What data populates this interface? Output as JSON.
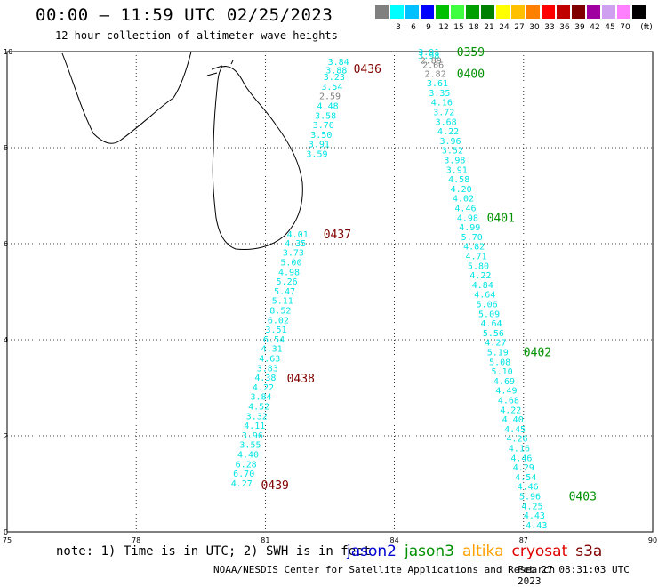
{
  "header": {
    "title": "00:00 – 11:59 UTC 02/25/2023",
    "subtitle": "12 hour collection of altimeter wave heights"
  },
  "colorbar": {
    "unit": "(ft)",
    "bins": [
      {
        "label": "",
        "color": "#808080"
      },
      {
        "label": "3",
        "color": "#00ffff"
      },
      {
        "label": "6",
        "color": "#00c0ff"
      },
      {
        "label": "9",
        "color": "#0000ff"
      },
      {
        "label": "12",
        "color": "#00c000"
      },
      {
        "label": "15",
        "color": "#40ff40"
      },
      {
        "label": "18",
        "color": "#00a000"
      },
      {
        "label": "21",
        "color": "#008000"
      },
      {
        "label": "24",
        "color": "#ffff00"
      },
      {
        "label": "27",
        "color": "#ffc000"
      },
      {
        "label": "30",
        "color": "#ff8000"
      },
      {
        "label": "33",
        "color": "#ff0000"
      },
      {
        "label": "36",
        "color": "#c00000"
      },
      {
        "label": "39",
        "color": "#800000"
      },
      {
        "label": "42",
        "color": "#a000a0"
      },
      {
        "label": "45",
        "color": "#d0a0f0"
      },
      {
        "label": "70",
        "color": "#ff80ff"
      },
      {
        "label": "",
        "color": "#000000"
      }
    ]
  },
  "map": {
    "lon_range": [
      75,
      90
    ],
    "lat_range": [
      0,
      10
    ],
    "lon_ticks": [
      "75",
      "78",
      "81",
      "84",
      "87",
      "90"
    ],
    "lat_ticks": [
      "0",
      "2",
      "4",
      "6",
      "8",
      "10"
    ],
    "track_west": {
      "color": "#00e5e5",
      "points": [
        {
          "lon": 82.7,
          "lat": 9.8,
          "v": "3.84",
          "c": "#00e5e5"
        },
        {
          "lon": 82.65,
          "lat": 9.62,
          "v": "3.88",
          "c": "#00e5e5"
        },
        {
          "lon": 82.6,
          "lat": 9.48,
          "v": "3.23",
          "c": "#00e5e5"
        },
        {
          "lon": 82.55,
          "lat": 9.28,
          "v": "3.54",
          "c": "#00e5e5"
        },
        {
          "lon": 82.5,
          "lat": 9.08,
          "v": "2.59",
          "c": "#808080"
        },
        {
          "lon": 82.45,
          "lat": 8.88,
          "v": "4.48",
          "c": "#00e5e5"
        },
        {
          "lon": 82.4,
          "lat": 8.68,
          "v": "3.58",
          "c": "#00e5e5"
        },
        {
          "lon": 82.35,
          "lat": 8.48,
          "v": "3.70",
          "c": "#00e5e5"
        },
        {
          "lon": 82.3,
          "lat": 8.28,
          "v": "3.50",
          "c": "#00e5e5"
        },
        {
          "lon": 82.25,
          "lat": 8.08,
          "v": "3.91",
          "c": "#00e5e5"
        },
        {
          "lon": 82.2,
          "lat": 7.88,
          "v": "3.59",
          "c": "#00e5e5"
        },
        {
          "lon": 81.75,
          "lat": 6.2,
          "v": "4.01",
          "c": "#00e5e5"
        },
        {
          "lon": 81.7,
          "lat": 6.02,
          "v": "4.35",
          "c": "#00e5e5"
        },
        {
          "lon": 81.65,
          "lat": 5.82,
          "v": "3.73",
          "c": "#00e5e5"
        },
        {
          "lon": 81.6,
          "lat": 5.62,
          "v": "5.00",
          "c": "#00e5e5"
        },
        {
          "lon": 81.55,
          "lat": 5.42,
          "v": "4.98",
          "c": "#00e5e5"
        },
        {
          "lon": 81.5,
          "lat": 5.22,
          "v": "5.26",
          "c": "#00e5e5"
        },
        {
          "lon": 81.45,
          "lat": 5.02,
          "v": "5.47",
          "c": "#00e5e5"
        },
        {
          "lon": 81.4,
          "lat": 4.82,
          "v": "5.11",
          "c": "#00e5e5"
        },
        {
          "lon": 81.35,
          "lat": 4.62,
          "v": "8.52",
          "c": "#00e5e5"
        },
        {
          "lon": 81.3,
          "lat": 4.42,
          "v": "6.02",
          "c": "#00e5e5"
        },
        {
          "lon": 81.25,
          "lat": 4.22,
          "v": "3.51",
          "c": "#00e5e5"
        },
        {
          "lon": 81.2,
          "lat": 4.02,
          "v": "6.54",
          "c": "#00e5e5"
        },
        {
          "lon": 81.15,
          "lat": 3.82,
          "v": "4.31",
          "c": "#00e5e5"
        },
        {
          "lon": 81.1,
          "lat": 3.62,
          "v": "4.63",
          "c": "#00e5e5"
        },
        {
          "lon": 81.05,
          "lat": 3.42,
          "v": "3.83",
          "c": "#00e5e5"
        },
        {
          "lon": 81.0,
          "lat": 3.22,
          "v": "4.38",
          "c": "#00e5e5"
        },
        {
          "lon": 80.95,
          "lat": 3.02,
          "v": "4.22",
          "c": "#00e5e5"
        },
        {
          "lon": 80.9,
          "lat": 2.82,
          "v": "3.84",
          "c": "#00e5e5"
        },
        {
          "lon": 80.85,
          "lat": 2.62,
          "v": "4.52",
          "c": "#00e5e5"
        },
        {
          "lon": 80.8,
          "lat": 2.42,
          "v": "3.32",
          "c": "#00e5e5"
        },
        {
          "lon": 80.75,
          "lat": 2.22,
          "v": "4.11",
          "c": "#00e5e5"
        },
        {
          "lon": 80.7,
          "lat": 2.02,
          "v": "3.96",
          "c": "#00e5e5"
        },
        {
          "lon": 80.65,
          "lat": 1.82,
          "v": "3.55",
          "c": "#00e5e5"
        },
        {
          "lon": 80.6,
          "lat": 1.62,
          "v": "4.40",
          "c": "#00e5e5"
        },
        {
          "lon": 80.55,
          "lat": 1.42,
          "v": "6.28",
          "c": "#00e5e5"
        },
        {
          "lon": 80.5,
          "lat": 1.22,
          "v": "6.70",
          "c": "#00e5e5"
        },
        {
          "lon": 80.45,
          "lat": 1.02,
          "v": "4.27",
          "c": "#00e5e5"
        }
      ],
      "time_labels": [
        {
          "lon": 83.05,
          "lat": 9.65,
          "t": "0436"
        },
        {
          "lon": 82.35,
          "lat": 6.2,
          "t": "0437"
        },
        {
          "lon": 81.5,
          "lat": 3.2,
          "t": "0438"
        },
        {
          "lon": 80.9,
          "lat": 0.98,
          "t": "0439"
        }
      ]
    },
    "track_east": {
      "color": "#00e5e5",
      "points": [
        {
          "lon": 84.8,
          "lat": 10.0,
          "v": "3.91",
          "c": "#00e5e5"
        },
        {
          "lon": 84.8,
          "lat": 9.93,
          "v": "3.98",
          "c": "#00e5e5"
        },
        {
          "lon": 84.85,
          "lat": 9.82,
          "v": "2.89",
          "c": "#808080"
        },
        {
          "lon": 84.9,
          "lat": 9.73,
          "v": "2.66",
          "c": "#808080"
        },
        {
          "lon": 84.95,
          "lat": 9.55,
          "v": "2.82",
          "c": "#808080"
        },
        {
          "lon": 85.0,
          "lat": 9.35,
          "v": "3.61",
          "c": "#00e5e5"
        },
        {
          "lon": 85.05,
          "lat": 9.15,
          "v": "3.35",
          "c": "#00e5e5"
        },
        {
          "lon": 85.1,
          "lat": 8.95,
          "v": "4.16",
          "c": "#00e5e5"
        },
        {
          "lon": 85.15,
          "lat": 8.75,
          "v": "3.72",
          "c": "#00e5e5"
        },
        {
          "lon": 85.2,
          "lat": 8.55,
          "v": "3.68",
          "c": "#00e5e5"
        },
        {
          "lon": 85.25,
          "lat": 8.35,
          "v": "4.22",
          "c": "#00e5e5"
        },
        {
          "lon": 85.3,
          "lat": 8.15,
          "v": "3.96",
          "c": "#00e5e5"
        },
        {
          "lon": 85.35,
          "lat": 7.95,
          "v": "3.52",
          "c": "#00e5e5"
        },
        {
          "lon": 85.4,
          "lat": 7.75,
          "v": "3.98",
          "c": "#00e5e5"
        },
        {
          "lon": 85.45,
          "lat": 7.55,
          "v": "3.91",
          "c": "#00e5e5"
        },
        {
          "lon": 85.5,
          "lat": 7.35,
          "v": "4.58",
          "c": "#00e5e5"
        },
        {
          "lon": 85.55,
          "lat": 7.15,
          "v": "4.20",
          "c": "#00e5e5"
        },
        {
          "lon": 85.6,
          "lat": 6.95,
          "v": "4.02",
          "c": "#00e5e5"
        },
        {
          "lon": 85.65,
          "lat": 6.75,
          "v": "4.46",
          "c": "#00e5e5"
        },
        {
          "lon": 85.7,
          "lat": 6.55,
          "v": "4.98",
          "c": "#00e5e5"
        },
        {
          "lon": 85.75,
          "lat": 6.35,
          "v": "4.99",
          "c": "#00e5e5"
        },
        {
          "lon": 85.8,
          "lat": 6.15,
          "v": "5.70",
          "c": "#00e5e5"
        },
        {
          "lon": 85.85,
          "lat": 5.95,
          "v": "4.82",
          "c": "#00e5e5"
        },
        {
          "lon": 85.9,
          "lat": 5.75,
          "v": "4.71",
          "c": "#00e5e5"
        },
        {
          "lon": 85.95,
          "lat": 5.55,
          "v": "5.80",
          "c": "#00e5e5"
        },
        {
          "lon": 86.0,
          "lat": 5.35,
          "v": "4.22",
          "c": "#00e5e5"
        },
        {
          "lon": 86.05,
          "lat": 5.15,
          "v": "4.84",
          "c": "#00e5e5"
        },
        {
          "lon": 86.1,
          "lat": 4.95,
          "v": "4.64",
          "c": "#00e5e5"
        },
        {
          "lon": 86.15,
          "lat": 4.75,
          "v": "5.06",
          "c": "#00e5e5"
        },
        {
          "lon": 86.2,
          "lat": 4.55,
          "v": "5.09",
          "c": "#00e5e5"
        },
        {
          "lon": 86.25,
          "lat": 4.35,
          "v": "4.64",
          "c": "#00e5e5"
        },
        {
          "lon": 86.3,
          "lat": 4.15,
          "v": "5.56",
          "c": "#00e5e5"
        },
        {
          "lon": 86.35,
          "lat": 3.95,
          "v": "4.27",
          "c": "#00e5e5"
        },
        {
          "lon": 86.4,
          "lat": 3.75,
          "v": "5.19",
          "c": "#00e5e5"
        },
        {
          "lon": 86.45,
          "lat": 3.55,
          "v": "5.08",
          "c": "#00e5e5"
        },
        {
          "lon": 86.5,
          "lat": 3.35,
          "v": "5.10",
          "c": "#00e5e5"
        },
        {
          "lon": 86.55,
          "lat": 3.15,
          "v": "4.69",
          "c": "#00e5e5"
        },
        {
          "lon": 86.6,
          "lat": 2.95,
          "v": "4.49",
          "c": "#00e5e5"
        },
        {
          "lon": 86.65,
          "lat": 2.75,
          "v": "4.68",
          "c": "#00e5e5"
        },
        {
          "lon": 86.7,
          "lat": 2.55,
          "v": "4.22",
          "c": "#00e5e5"
        },
        {
          "lon": 86.75,
          "lat": 2.35,
          "v": "4.40",
          "c": "#00e5e5"
        },
        {
          "lon": 86.8,
          "lat": 2.15,
          "v": "4.45",
          "c": "#00e5e5"
        },
        {
          "lon": 86.85,
          "lat": 1.95,
          "v": "4.26",
          "c": "#00e5e5"
        },
        {
          "lon": 86.9,
          "lat": 1.75,
          "v": "4.16",
          "c": "#00e5e5"
        },
        {
          "lon": 86.95,
          "lat": 1.55,
          "v": "4.46",
          "c": "#00e5e5"
        },
        {
          "lon": 87.0,
          "lat": 1.35,
          "v": "4.29",
          "c": "#00e5e5"
        },
        {
          "lon": 87.05,
          "lat": 1.15,
          "v": "4.54",
          "c": "#00e5e5"
        },
        {
          "lon": 87.1,
          "lat": 0.95,
          "v": "4.46",
          "c": "#00e5e5"
        },
        {
          "lon": 87.15,
          "lat": 0.75,
          "v": "5.96",
          "c": "#00e5e5"
        },
        {
          "lon": 87.2,
          "lat": 0.55,
          "v": "4.25",
          "c": "#00e5e5"
        },
        {
          "lon": 87.25,
          "lat": 0.35,
          "v": "4.43",
          "c": "#00e5e5"
        },
        {
          "lon": 87.3,
          "lat": 0.15,
          "v": "4.43",
          "c": "#00e5e5"
        }
      ],
      "time_labels": [
        {
          "lon": 85.45,
          "lat": 10.0,
          "t": "0359"
        },
        {
          "lon": 85.45,
          "lat": 9.55,
          "t": "0400"
        },
        {
          "lon": 86.15,
          "lat": 6.55,
          "t": "0401"
        },
        {
          "lon": 87.0,
          "lat": 3.75,
          "t": "0402"
        },
        {
          "lon": 88.05,
          "lat": 0.75,
          "t": "0403"
        }
      ]
    }
  },
  "footer": {
    "note": "note: 1) Time is in UTC; 2) SWH is in feet",
    "satellites": [
      {
        "name": "jason2",
        "color": "#0000d0"
      },
      {
        "name": "jason3",
        "color": "#009000"
      },
      {
        "name": "altika",
        "color": "#ffa000"
      },
      {
        "name": "cryosat",
        "color": "#e00000"
      },
      {
        "name": "s3a",
        "color": "#800000"
      }
    ],
    "credit": "NOAA/NESDIS Center for Satellite Applications and Research",
    "timestamp": "Feb 27 08:31:03 UTC 2023"
  }
}
